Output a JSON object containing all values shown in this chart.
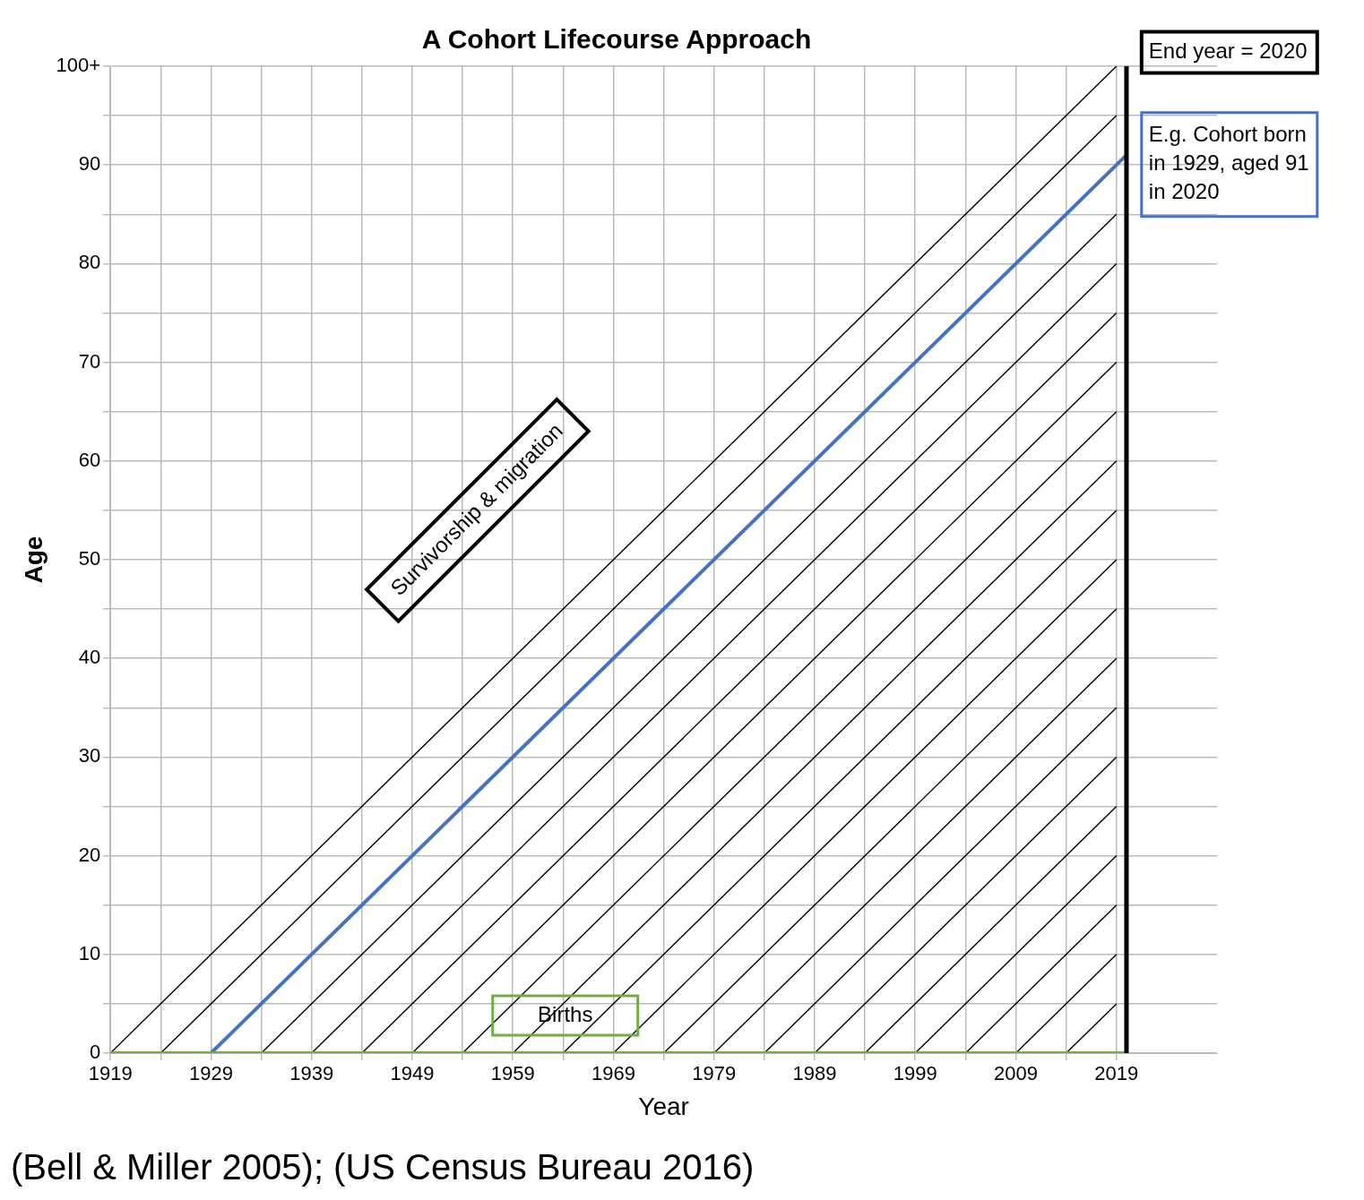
{
  "chart_data": {
    "type": "line",
    "title": "A Cohort Lifecourse Approach",
    "xlabel": "Year",
    "ylabel": "Age",
    "xlim": [
      1919,
      2029
    ],
    "ylim": [
      0,
      100
    ],
    "xticks": [
      1919,
      {
        "value": 1924,
        "label": null
      },
      1929,
      {
        "value": 1934,
        "label": null
      },
      1939,
      {
        "value": 1944,
        "label": null
      },
      1949,
      {
        "value": 1954,
        "label": null
      },
      1959,
      {
        "value": 1964,
        "label": null
      },
      1969,
      {
        "value": 1974,
        "label": null
      },
      1979,
      {
        "value": 1984,
        "label": null
      },
      1989,
      {
        "value": 1994,
        "label": null
      },
      1999,
      {
        "value": 2004,
        "label": null
      },
      2009,
      {
        "value": 2014,
        "label": null
      },
      2019
    ],
    "yticks": [
      0,
      {
        "value": 5,
        "label": null
      },
      10,
      {
        "value": 15,
        "label": null
      },
      20,
      {
        "value": 25,
        "label": null
      },
      30,
      {
        "value": 35,
        "label": null
      },
      40,
      {
        "value": 45,
        "label": null
      },
      50,
      {
        "value": 55,
        "label": null
      },
      60,
      {
        "value": 65,
        "label": null
      },
      70,
      {
        "value": 75,
        "label": null
      },
      80,
      {
        "value": 85,
        "label": null
      },
      90,
      {
        "value": 95,
        "label": null
      },
      {
        "value": 100,
        "label": "100+"
      }
    ],
    "grid": true,
    "legend": false,
    "marker": "none",
    "line_style": "solid",
    "series": [
      {
        "color": "#000000",
        "x": [
          1919,
          2019
        ],
        "values": [
          0,
          100
        ]
      },
      {
        "color": "#000000",
        "x": [
          1924,
          2019
        ],
        "values": [
          0,
          95
        ]
      },
      {
        "color": "#000000",
        "x": [
          1934,
          2019
        ],
        "values": [
          0,
          85
        ]
      },
      {
        "color": "#000000",
        "x": [
          1939,
          2019
        ],
        "values": [
          0,
          80
        ]
      },
      {
        "color": "#000000",
        "x": [
          1944,
          2019
        ],
        "values": [
          0,
          75
        ]
      },
      {
        "color": "#000000",
        "x": [
          1949,
          2019
        ],
        "values": [
          0,
          70
        ]
      },
      {
        "color": "#000000",
        "x": [
          1954,
          2019
        ],
        "values": [
          0,
          65
        ]
      },
      {
        "color": "#000000",
        "x": [
          1959,
          2019
        ],
        "values": [
          0,
          60
        ]
      },
      {
        "color": "#000000",
        "x": [
          1964,
          2019
        ],
        "values": [
          0,
          55
        ]
      },
      {
        "color": "#000000",
        "x": [
          1969,
          2019
        ],
        "values": [
          0,
          50
        ]
      },
      {
        "color": "#000000",
        "x": [
          1974,
          2019
        ],
        "values": [
          0,
          45
        ]
      },
      {
        "color": "#000000",
        "x": [
          1979,
          2019
        ],
        "values": [
          0,
          40
        ]
      },
      {
        "color": "#000000",
        "x": [
          1984,
          2019
        ],
        "values": [
          0,
          35
        ]
      },
      {
        "color": "#000000",
        "x": [
          1989,
          2019
        ],
        "values": [
          0,
          30
        ]
      },
      {
        "color": "#000000",
        "x": [
          1994,
          2019
        ],
        "values": [
          0,
          25
        ]
      },
      {
        "color": "#000000",
        "x": [
          1999,
          2019
        ],
        "values": [
          0,
          20
        ]
      },
      {
        "color": "#000000",
        "x": [
          2004,
          2019
        ],
        "values": [
          0,
          15
        ]
      },
      {
        "color": "#000000",
        "x": [
          2009,
          2019
        ],
        "values": [
          0,
          10
        ]
      },
      {
        "color": "#000000",
        "x": [
          2014,
          2019
        ],
        "values": [
          0,
          5
        ]
      },
      {
        "color": "#4472c4",
        "x": [
          1929,
          2020
        ],
        "values": [
          0,
          91
        ]
      },
      {
        "color": "#70ad47",
        "x": [
          1919,
          2020
        ],
        "values": [
          0,
          0
        ]
      }
    ],
    "ref_lines": [
      {
        "axis": "x",
        "value": 2020,
        "color": "#000000"
      }
    ],
    "annotations": [
      "End year = 2020",
      "E.g. Cohort born in 1929, aged 91 in 2020",
      "Survivorship & migration",
      "Births",
      "(Bell & Miller 2005); (US Census Bureau 2016)"
    ]
  }
}
